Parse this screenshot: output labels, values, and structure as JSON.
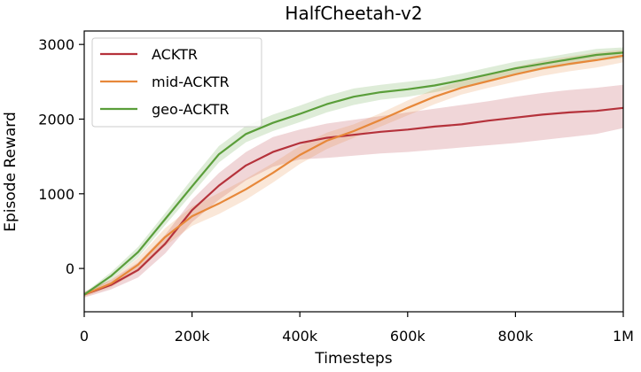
{
  "chart_data": {
    "type": "line",
    "title": "HalfCheetah-v2",
    "xlabel": "Timesteps",
    "ylabel": "Episode Reward",
    "xlim": [
      0,
      1000000
    ],
    "ylim": [
      -580,
      3180
    ],
    "x_ticks": [
      {
        "value": 0,
        "label": "0"
      },
      {
        "value": 200000,
        "label": "200k"
      },
      {
        "value": 400000,
        "label": "400k"
      },
      {
        "value": 600000,
        "label": "600k"
      },
      {
        "value": 800000,
        "label": "800k"
      },
      {
        "value": 1000000,
        "label": "1M"
      }
    ],
    "y_ticks": [
      {
        "value": 0,
        "label": "0"
      },
      {
        "value": 1000,
        "label": "1000"
      },
      {
        "value": 2000,
        "label": "2000"
      },
      {
        "value": 3000,
        "label": "3000"
      }
    ],
    "grid": false,
    "legend_position": "top-left",
    "x": [
      0,
      50000,
      100000,
      150000,
      200000,
      250000,
      300000,
      350000,
      400000,
      450000,
      500000,
      550000,
      600000,
      650000,
      700000,
      750000,
      800000,
      850000,
      900000,
      950000,
      1000000
    ],
    "series": [
      {
        "name": "ACKTR",
        "color": "#b5323b",
        "values": [
          -350,
          -220,
          -20,
          330,
          780,
          1110,
          1380,
          1560,
          1680,
          1750,
          1790,
          1830,
          1860,
          1900,
          1930,
          1980,
          2020,
          2060,
          2090,
          2110,
          2150
        ],
        "lower": [
          -390,
          -280,
          -120,
          200,
          620,
          920,
          1180,
          1360,
          1460,
          1480,
          1510,
          1540,
          1560,
          1590,
          1620,
          1650,
          1680,
          1720,
          1760,
          1800,
          1880
        ],
        "upper": [
          -310,
          -150,
          80,
          450,
          920,
          1280,
          1560,
          1760,
          1860,
          1940,
          1990,
          2040,
          2090,
          2140,
          2190,
          2240,
          2300,
          2350,
          2390,
          2420,
          2460
        ]
      },
      {
        "name": "mid-ACKTR",
        "color": "#e7883a",
        "values": [
          -350,
          -200,
          50,
          420,
          700,
          870,
          1060,
          1280,
          1520,
          1710,
          1840,
          1990,
          2150,
          2300,
          2420,
          2510,
          2600,
          2680,
          2740,
          2790,
          2850
        ],
        "lower": [
          -380,
          -250,
          -40,
          300,
          570,
          730,
          920,
          1150,
          1400,
          1600,
          1750,
          1900,
          2050,
          2200,
          2330,
          2420,
          2500,
          2580,
          2640,
          2690,
          2760
        ],
        "upper": [
          -320,
          -150,
          140,
          540,
          830,
          1010,
          1200,
          1410,
          1640,
          1820,
          1930,
          2080,
          2250,
          2400,
          2510,
          2600,
          2700,
          2780,
          2840,
          2890,
          2930
        ]
      },
      {
        "name": "geo-ACKTR",
        "color": "#5a9e3a",
        "values": [
          -350,
          -100,
          220,
          660,
          1100,
          1530,
          1800,
          1950,
          2070,
          2200,
          2300,
          2360,
          2400,
          2450,
          2520,
          2600,
          2680,
          2740,
          2800,
          2860,
          2890
        ],
        "lower": [
          -370,
          -150,
          150,
          580,
          1000,
          1420,
          1690,
          1840,
          1960,
          2090,
          2190,
          2260,
          2300,
          2360,
          2430,
          2510,
          2590,
          2660,
          2720,
          2780,
          2820
        ],
        "upper": [
          -330,
          -50,
          290,
          740,
          1200,
          1640,
          1910,
          2060,
          2180,
          2310,
          2410,
          2460,
          2500,
          2540,
          2610,
          2690,
          2770,
          2820,
          2880,
          2940,
          2960
        ]
      }
    ]
  }
}
